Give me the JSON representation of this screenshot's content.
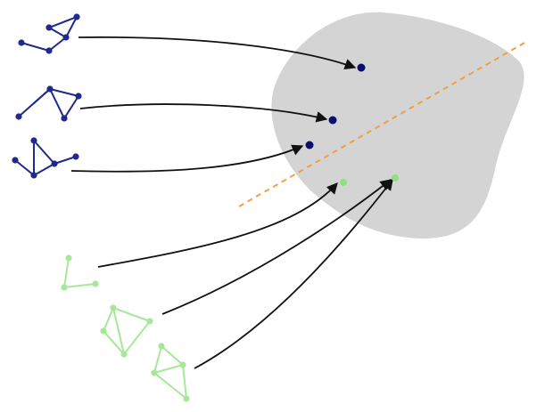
{
  "colors": {
    "background": "#ffffff",
    "embedding_space": "#d4d4d4",
    "class_a": "#1f2a8c",
    "class_a_point": "#0a0e6e",
    "class_b": "#a6e89a",
    "class_b_point": "#8fe07f",
    "arrow": "#111111",
    "decision_boundary": "#f0a040"
  },
  "groups": [
    {
      "id": "class-a",
      "color_key": "class_a",
      "count": 3
    },
    {
      "id": "class-b",
      "color_key": "class_b",
      "count": 3
    }
  ]
}
